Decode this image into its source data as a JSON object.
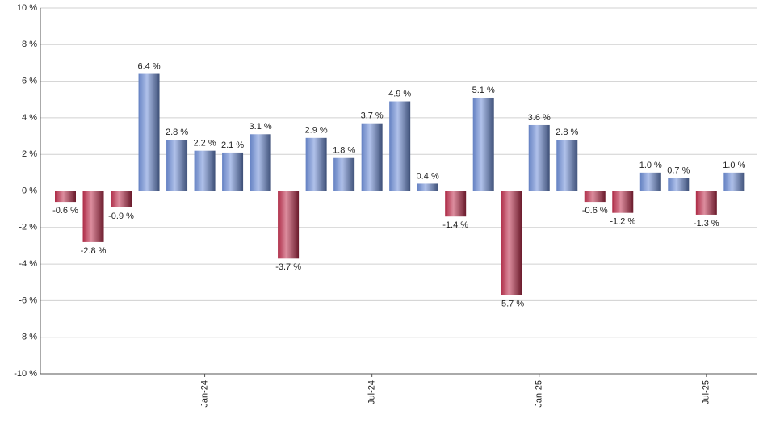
{
  "chart_data": {
    "type": "bar",
    "categories": [
      null,
      null,
      null,
      null,
      null,
      "Jan-24",
      null,
      null,
      null,
      null,
      null,
      "Jul-24",
      null,
      null,
      null,
      null,
      null,
      "Jan-25",
      null,
      null,
      null,
      null,
      null,
      "Jul-25",
      null
    ],
    "values": [
      -0.6,
      -2.8,
      -0.9,
      6.4,
      2.8,
      2.2,
      2.1,
      3.1,
      -3.7,
      2.9,
      1.8,
      3.7,
      4.9,
      0.4,
      -1.4,
      5.1,
      -5.7,
      3.6,
      2.8,
      -0.6,
      -1.2,
      1.0,
      0.7,
      -1.3,
      1.0
    ],
    "value_labels": [
      "-0.6 %",
      "-2.8 %",
      "-0.9 %",
      "6.4 %",
      "2.8 %",
      "2.2 %",
      "2.1 %",
      "3.1 %",
      "-3.7 %",
      "2.9 %",
      "1.8 %",
      "3.7 %",
      "4.9 %",
      "0.4 %",
      "-1.4 %",
      "5.1 %",
      "-5.7 %",
      "3.6 %",
      "2.8 %",
      "-0.6 %",
      "-1.2 %",
      "1.0 %",
      "0.7 %",
      "-1.3 %",
      "1.0 %"
    ],
    "positive_color": "#6f8fd8",
    "negative_color": "#c0304e",
    "ylim": [
      -10,
      10
    ],
    "yticks": [
      {
        "value": -10,
        "label": "-10 %"
      },
      {
        "value": -8,
        "label": "-8 %"
      },
      {
        "value": -6,
        "label": "-6 %"
      },
      {
        "value": -4,
        "label": "-4 %"
      },
      {
        "value": -2,
        "label": "-2 %"
      },
      {
        "value": 0,
        "label": "0 %"
      },
      {
        "value": 2,
        "label": "2 %"
      },
      {
        "value": 4,
        "label": "4 %"
      },
      {
        "value": 6,
        "label": "6 %"
      },
      {
        "value": 8,
        "label": "8 %"
      },
      {
        "value": 10,
        "label": "10 %"
      }
    ],
    "grid": true
  }
}
